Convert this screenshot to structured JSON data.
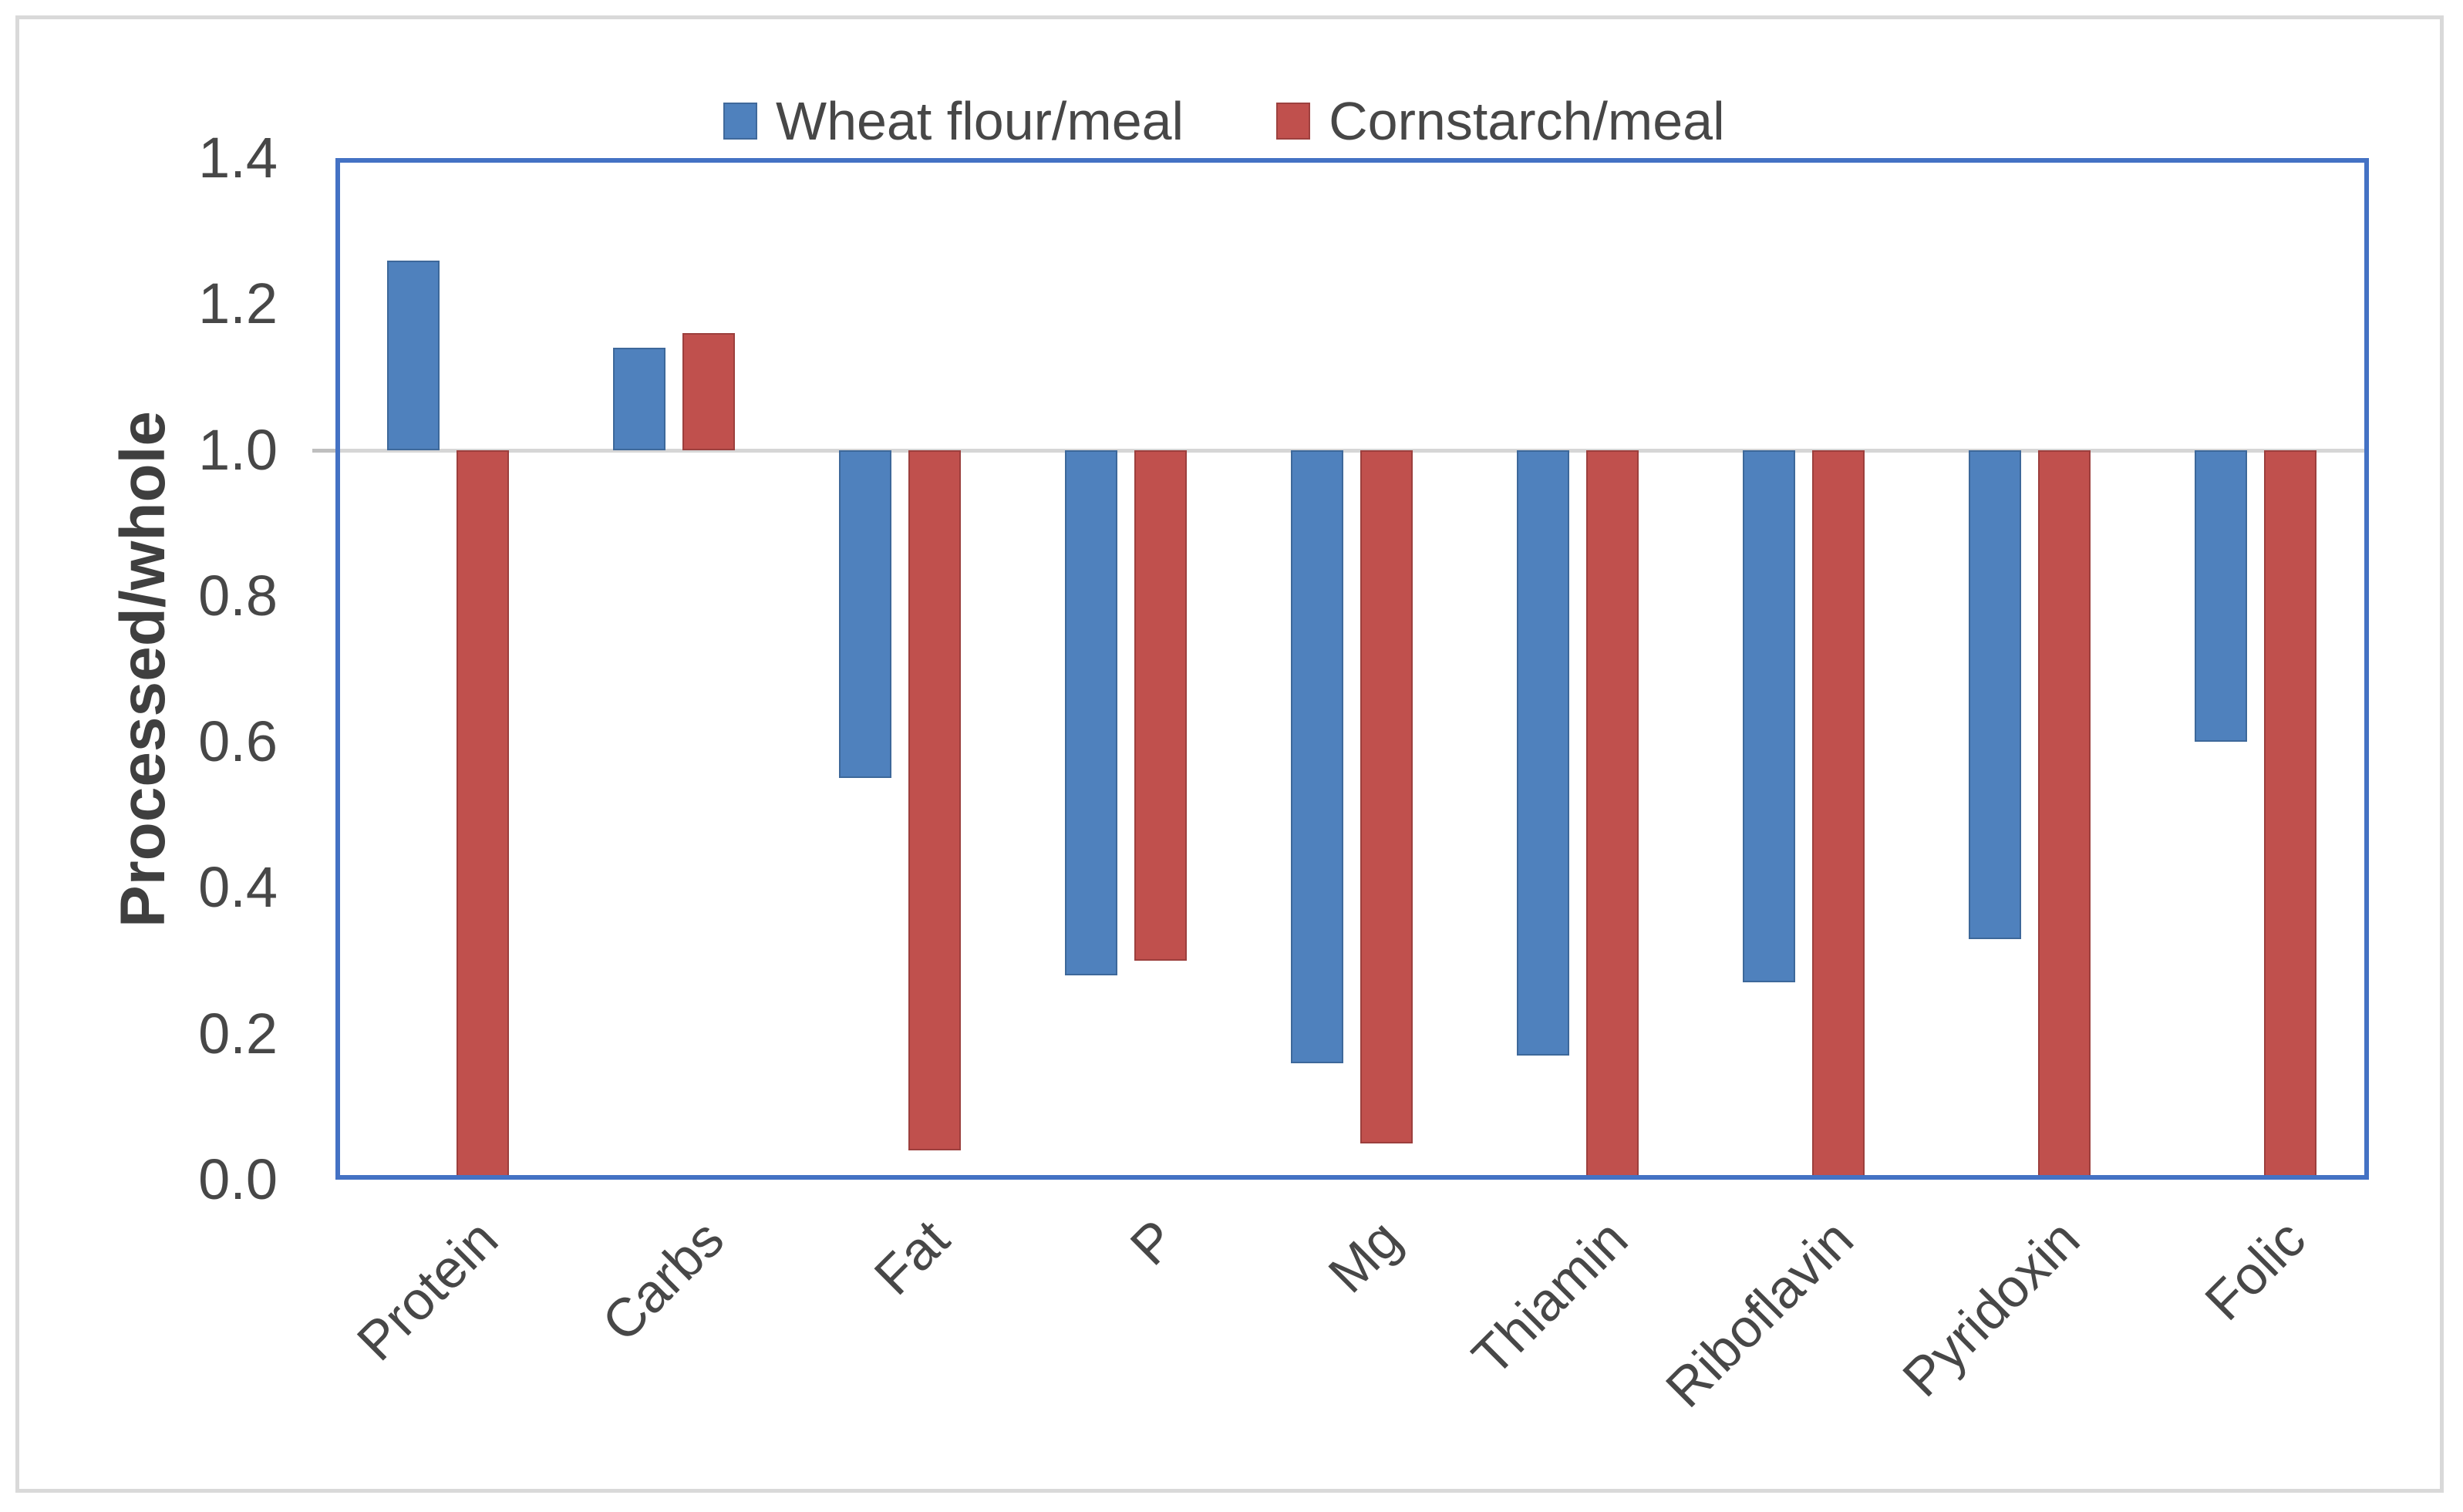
{
  "chart_data": {
    "type": "bar",
    "title": "",
    "categories": [
      "Protein",
      "Carbs",
      "Fat",
      "P",
      "Mg",
      "Thiamin",
      "Riboflavin",
      "Pyridoxin",
      "Folic"
    ],
    "series": [
      {
        "name": "Wheat flour/meal",
        "color": "#4F81BD",
        "border_color": "#3D689A",
        "values": [
          1.26,
          1.14,
          0.55,
          0.28,
          0.16,
          0.17,
          0.27,
          0.33,
          0.6
        ]
      },
      {
        "name": "Cornstarch/meal",
        "color": "#C0504D",
        "border_color": "#9C3F3D",
        "values": [
          0.0,
          1.16,
          0.04,
          0.3,
          0.05,
          0.0,
          0.0,
          0.0,
          0.0
        ]
      }
    ],
    "xlabel": "",
    "ylabel": "Processed/whole",
    "ylim": [
      0.0,
      1.4
    ],
    "ytick_labels": [
      "0.0",
      "0.2",
      "0.4",
      "0.6",
      "0.8",
      "1.0",
      "1.2",
      "1.4"
    ],
    "bar_baseline": 1.0,
    "gridline_values": [
      1.0
    ],
    "grid": "baseline-only",
    "legend_position": "top-center"
  },
  "colors": {
    "bar_blue": "#4F81BD",
    "bar_red": "#C0504D",
    "plot_border_blue": "#4472C4",
    "baseline_gray": "#D6D6D6",
    "outer_border_gray": "#D9D9D9",
    "text_gray": "#474747"
  }
}
